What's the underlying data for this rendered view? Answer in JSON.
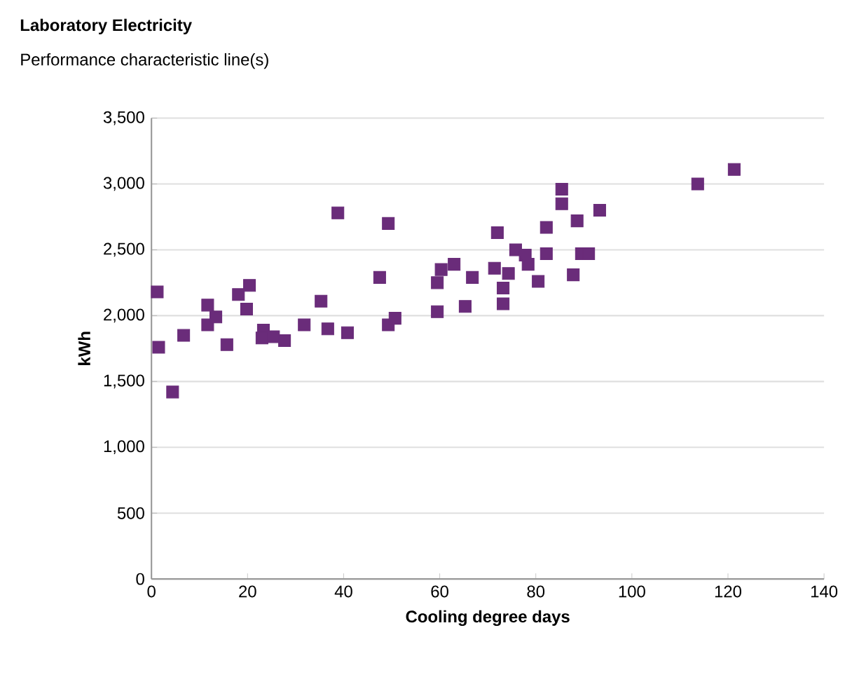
{
  "chart_data": {
    "type": "scatter",
    "title": "Laboratory Electricity",
    "subtitle": "Performance characteristic line(s)",
    "xlabel": "Cooling degree days",
    "ylabel": "kWh",
    "x": [
      1.2,
      1.5,
      4.4,
      6.7,
      11.7,
      11.7,
      13.4,
      15.7,
      18.1,
      20.4,
      19.8,
      23.3,
      23.0,
      25.4,
      27.7,
      31.8,
      35.3,
      36.7,
      38.8,
      40.8,
      47.5,
      49.3,
      49.3,
      50.7,
      59.5,
      60.3,
      63.0,
      59.5,
      65.3,
      66.8,
      72.0,
      71.4,
      74.3,
      73.2,
      73.2,
      75.8,
      77.8,
      78.4,
      80.5,
      82.2,
      82.2,
      85.4,
      85.4,
      88.6,
      87.8,
      89.5,
      91.0,
      93.3,
      113.7,
      121.3
    ],
    "values": [
      2180,
      1760,
      1420,
      1850,
      2080,
      1930,
      1990,
      1780,
      2160,
      2230,
      2050,
      1890,
      1830,
      1840,
      1810,
      1930,
      2110,
      1900,
      2780,
      1870,
      2290,
      2700,
      1930,
      1980,
      2250,
      2350,
      2390,
      2030,
      2070,
      2290,
      2630,
      2360,
      2320,
      2210,
      2090,
      2500,
      2460,
      2390,
      2260,
      2670,
      2470,
      2960,
      2850,
      2720,
      2310,
      2470,
      2470,
      2800,
      3000,
      3110
    ],
    "color": "#6a2c7a",
    "marker": "square",
    "grid": "y",
    "xlim": [
      0,
      140
    ],
    "xticks": [
      0,
      20,
      40,
      60,
      80,
      100,
      120,
      140
    ],
    "ylim": [
      0,
      3500
    ],
    "yticks": [
      {
        "value": 0,
        "label": "0"
      },
      {
        "value": 500,
        "label": "500"
      },
      {
        "value": 1000,
        "label": "1,000"
      },
      {
        "value": 1500,
        "label": "1,500"
      },
      {
        "value": 2000,
        "label": "2,000"
      },
      {
        "value": 2500,
        "label": "2,500"
      },
      {
        "value": 3000,
        "label": "3,000"
      },
      {
        "value": 3500,
        "label": "3,500"
      }
    ]
  }
}
